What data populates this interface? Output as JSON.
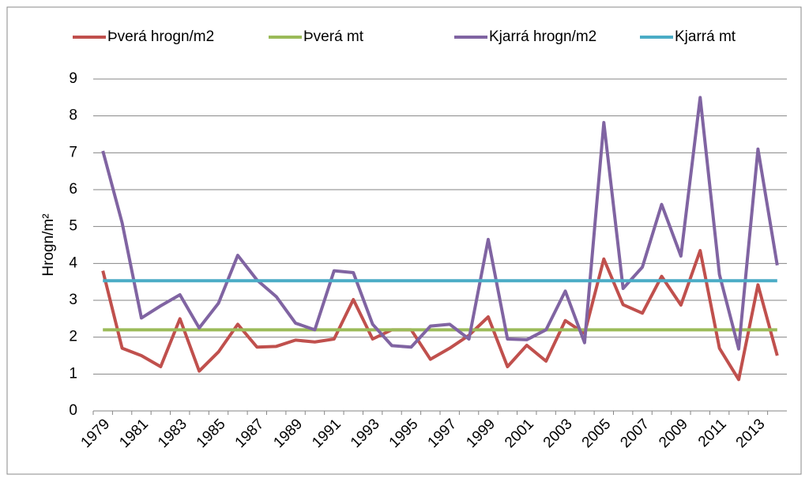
{
  "chart_data": {
    "type": "line",
    "y_label": "Hrogn/m²",
    "categories": [
      "1979",
      null,
      "1981",
      null,
      "1983",
      null,
      "1985",
      null,
      "1987",
      null,
      "1989",
      null,
      "1991",
      null,
      "1993",
      null,
      "1995",
      null,
      "1997",
      null,
      "1999",
      null,
      "2001",
      null,
      "2003",
      null,
      "2005",
      null,
      "2007",
      null,
      "2009",
      null,
      "2011",
      null,
      "2013",
      null
    ],
    "series": [
      {
        "name": "Þverá hrogn/m2",
        "color": "#c0504d",
        "values": [
          3.8,
          1.7,
          1.5,
          1.2,
          2.5,
          1.08,
          1.6,
          2.35,
          1.73,
          1.75,
          1.92,
          1.87,
          1.95,
          3.02,
          1.95,
          2.2,
          2.2,
          1.4,
          1.7,
          2.05,
          2.55,
          1.2,
          1.78,
          1.35,
          2.45,
          2.1,
          4.12,
          2.88,
          2.65,
          3.65,
          2.87,
          4.35,
          1.7,
          0.85,
          3.42,
          1.5
        ]
      },
      {
        "name": "Þverá mt",
        "color": "#9bbb59",
        "values": [
          2.2,
          2.2,
          2.2,
          2.2,
          2.2,
          2.2,
          2.2,
          2.2,
          2.2,
          2.2,
          2.2,
          2.2,
          2.2,
          2.2,
          2.2,
          2.2,
          2.2,
          2.2,
          2.2,
          2.2,
          2.2,
          2.2,
          2.2,
          2.2,
          2.2,
          2.2,
          2.2,
          2.2,
          2.2,
          2.2,
          2.2,
          2.2,
          2.2,
          2.2,
          2.2,
          2.2
        ]
      },
      {
        "name": "Kjarrá hrogn/m2",
        "color": "#8064a2",
        "values": [
          7.05,
          5.1,
          2.52,
          2.85,
          3.15,
          2.25,
          2.92,
          4.22,
          3.55,
          3.1,
          2.38,
          2.2,
          3.8,
          3.75,
          2.35,
          1.77,
          1.73,
          2.3,
          2.35,
          1.95,
          4.65,
          1.95,
          1.93,
          2.2,
          3.25,
          1.85,
          7.82,
          3.32,
          3.9,
          5.6,
          4.2,
          8.5,
          3.7,
          1.68,
          7.1,
          3.95
        ]
      },
      {
        "name": "Kjarrá mt",
        "color": "#4bacc6",
        "values": [
          3.53,
          3.53,
          3.53,
          3.53,
          3.53,
          3.53,
          3.53,
          3.53,
          3.53,
          3.53,
          3.53,
          3.53,
          3.53,
          3.53,
          3.53,
          3.53,
          3.53,
          3.53,
          3.53,
          3.53,
          3.53,
          3.53,
          3.53,
          3.53,
          3.53,
          3.53,
          3.53,
          3.53,
          3.53,
          3.53,
          3.53,
          3.53,
          3.53,
          3.53,
          3.53,
          3.53
        ]
      }
    ],
    "ylim": [
      0,
      9
    ],
    "yticks": [
      0,
      1,
      2,
      3,
      4,
      5,
      6,
      7,
      8,
      9
    ],
    "grid": true,
    "legend": "top"
  }
}
